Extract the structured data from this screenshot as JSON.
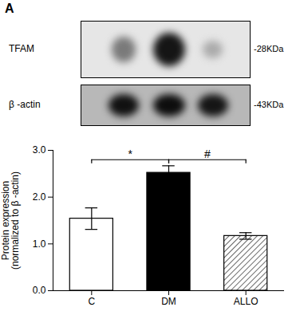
{
  "chart_data": {
    "type": "bar",
    "categories": [
      "C",
      "DM",
      "ALLO"
    ],
    "values": [
      1.54,
      2.52,
      1.17
    ],
    "errors": [
      0.23,
      0.15,
      0.07
    ],
    "colors": [
      "white",
      "black",
      "white"
    ],
    "ylabel": "Protein expression\n(normalized to β -actin)",
    "ylim": [
      0,
      3
    ],
    "yticks": [
      0,
      1,
      2,
      3
    ],
    "annotations": [
      "A",
      "TFAM",
      "-28KDa",
      "β -actin",
      "-43KDa"
    ],
    "significance": [
      {
        "from": "C",
        "to": "DM",
        "label": "*",
        "y": 2.8
      },
      {
        "from": "DM",
        "to": "ALLO",
        "label": "#",
        "y": 2.8
      }
    ]
  }
}
